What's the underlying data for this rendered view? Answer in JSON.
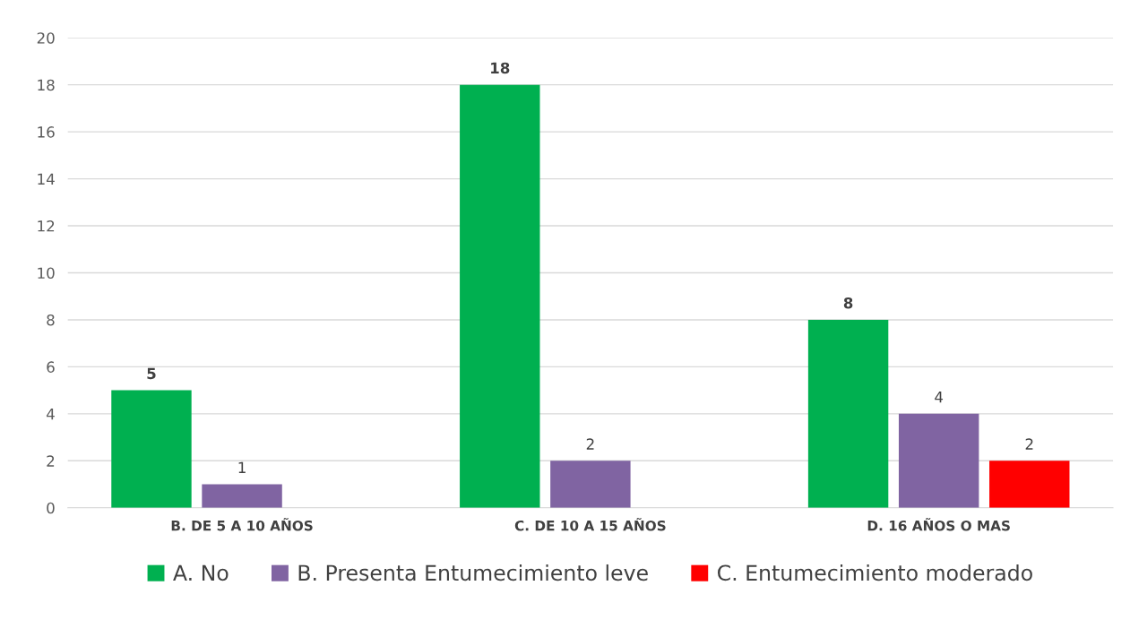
{
  "chart_data": {
    "type": "bar",
    "categories": [
      "B. DE 5 A 10 AÑOS",
      "C. DE 10 A 15 AÑOS",
      "D. 16 AÑOS O MAS"
    ],
    "series": [
      {
        "name": "A. No",
        "color": "#00b050",
        "values": [
          5,
          18,
          8
        ]
      },
      {
        "name": "B. Presenta Entumecimiento leve",
        "color": "#8064a2",
        "values": [
          1,
          2,
          4
        ]
      },
      {
        "name": "C. Entumecimiento moderado",
        "color": "#ff0000",
        "values": [
          null,
          null,
          2
        ]
      }
    ],
    "ylim": [
      0,
      20
    ],
    "yticks": [
      0,
      2,
      4,
      6,
      8,
      10,
      12,
      14,
      16,
      18,
      20
    ],
    "grid": "y",
    "legend": "bottom",
    "data_labels": true
  }
}
